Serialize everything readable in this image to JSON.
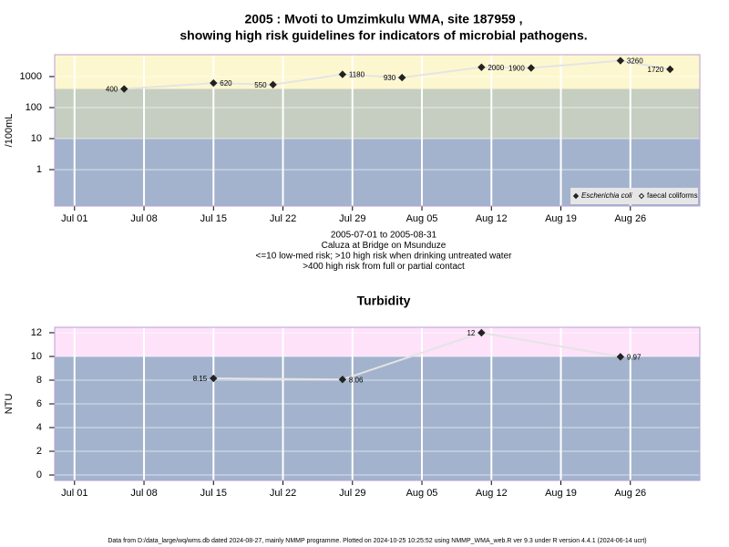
{
  "chart_data": [
    {
      "type": "line",
      "title": [
        "2005 : Mvoti to Umzimkulu WMA, site 187959 ,",
        "showing high risk guidelines for indicators of microbial pathogens."
      ],
      "y_label": "/100mL",
      "notes": [
        "2005-07-01 to 2005-08-31",
        "Caluza at Bridge on Msunduze",
        "<=10 low-med risk; >10 high risk when drinking untreated water",
        ">400 high risk from full or partial contact"
      ],
      "x": [
        "2005-07-06",
        "2005-07-15",
        "2005-07-21",
        "2005-07-28",
        "2005-08-03",
        "2005-08-11",
        "2005-08-16",
        "2005-08-25",
        "2005-08-30"
      ],
      "series": [
        {
          "name": "Escherichia coli",
          "color": "#222222",
          "line_color": "#e4e4e4",
          "marker": "filled",
          "values": [
            400,
            620,
            550,
            1180,
            930,
            2000,
            1900,
            3260,
            1720
          ]
        },
        {
          "name": "faecal coliforms",
          "color": "#222222",
          "line_color": "#e4e4e4",
          "marker": "open",
          "values": [
            null,
            null,
            null,
            null,
            null,
            null,
            null,
            null,
            null
          ]
        }
      ],
      "log_y": true,
      "xlim": [
        "2005-06-29",
        "2005-09-02"
      ],
      "xticks": [
        {
          "value": "2005-07-01",
          "label": "Jul 01"
        },
        {
          "value": "2005-07-08",
          "label": "Jul 08"
        },
        {
          "value": "2005-07-15",
          "label": "Jul 15"
        },
        {
          "value": "2005-07-22",
          "label": "Jul 22"
        },
        {
          "value": "2005-07-29",
          "label": "Jul 29"
        },
        {
          "value": "2005-08-05",
          "label": "Aug 05"
        },
        {
          "value": "2005-08-12",
          "label": "Aug 12"
        },
        {
          "value": "2005-08-19",
          "label": "Aug 19"
        },
        {
          "value": "2005-08-26",
          "label": "Aug 26"
        }
      ],
      "ylim": [
        0.067,
        5080
      ],
      "yticks": [
        1,
        10,
        100,
        1000
      ],
      "background": "#a3b3cd",
      "bands": [
        {
          "above": 10,
          "color": "#c6cec1"
        },
        {
          "above": 400,
          "color": "#fdf7cf"
        }
      ],
      "grid": true,
      "legend": "bottom-right"
    },
    {
      "type": "line",
      "title": [
        "Turbidity"
      ],
      "y_label": "NTU",
      "x": [
        "2005-07-15",
        "2005-07-28",
        "2005-08-11",
        "2005-08-25"
      ],
      "series": [
        {
          "name": "Turbidity",
          "color": "#222222",
          "line_color": "#e4e4e4",
          "marker": "filled",
          "values": [
            8.15,
            8.06,
            12,
            9.97
          ]
        }
      ],
      "log_y": false,
      "xlim": [
        "2005-06-29",
        "2005-09-02"
      ],
      "xticks": [
        {
          "value": "2005-07-01",
          "label": "Jul 01"
        },
        {
          "value": "2005-07-08",
          "label": "Jul 08"
        },
        {
          "value": "2005-07-15",
          "label": "Jul 15"
        },
        {
          "value": "2005-07-22",
          "label": "Jul 22"
        },
        {
          "value": "2005-07-29",
          "label": "Jul 29"
        },
        {
          "value": "2005-08-05",
          "label": "Aug 05"
        },
        {
          "value": "2005-08-12",
          "label": "Aug 12"
        },
        {
          "value": "2005-08-19",
          "label": "Aug 19"
        },
        {
          "value": "2005-08-26",
          "label": "Aug 26"
        }
      ],
      "ylim": [
        -0.46,
        12.46
      ],
      "yticks": [
        0,
        2,
        4,
        6,
        8,
        10,
        12
      ],
      "background": "#a3b3cd",
      "bands": [
        {
          "above": 10,
          "color": "#fde2f9"
        }
      ],
      "grid": true
    }
  ],
  "footer": "Data from D:/data_large/wq/wms.db dated 2024-08-27, mainly NMMP programme. Plotted on 2024-10-25 10:25:52 using NMMP_WMA_web.R ver 9.3 under R version 4.4.1 (2024-06-14 ucrt)"
}
